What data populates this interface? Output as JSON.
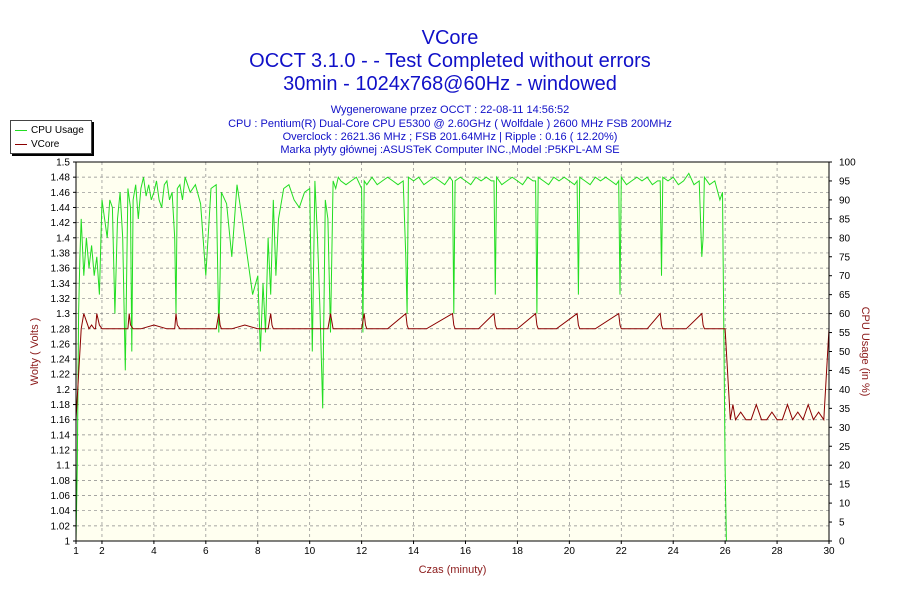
{
  "title": {
    "line1": "VCore",
    "line2": "OCCT 3.1.0 -  - Test Completed without errors",
    "line3": "30min - 1024x768@60Hz - windowed"
  },
  "info": [
    "Wygenerowane przez OCCT : 22-08-11 14:56:52",
    "CPU : Pentium(R) Dual-Core CPU E5300 @ 2.60GHz ( Wolfdale ) 2600 MHz FSB 200MHz",
    "Overclock : 2621.36 MHz ; FSB 201.64MHz | Ripple : 0.16 ( 12.20%)",
    "Marka płyty głównej :ASUSTeK Computer INC.,Model :P5KPL-AM SE"
  ],
  "legend": [
    {
      "name": "CPU Usage",
      "color": "#22dd22"
    },
    {
      "name": "VCore",
      "color": "#8b0000"
    }
  ],
  "colors": {
    "plot_bg": "#fffff0",
    "grid": "#888888",
    "title": "#1010c8",
    "axis_title": "#8b1a1a",
    "cpu": "#22dd22",
    "vcore": "#8b0000"
  },
  "chart_data": {
    "type": "line",
    "title": "VCore",
    "xlabel": "Czas (minuty)",
    "ylabel": "Wolty ( Volts )",
    "y2label": "CPU Usage (in %)",
    "xlim": [
      1,
      30
    ],
    "ylim": [
      1,
      1.5
    ],
    "y2lim": [
      0,
      100
    ],
    "grid": true,
    "legend_position": "top-left",
    "x_ticks": [
      1,
      2,
      4,
      6,
      8,
      10,
      12,
      14,
      16,
      18,
      20,
      22,
      24,
      26,
      28,
      30
    ],
    "y_ticks": [
      1,
      1.02,
      1.04,
      1.06,
      1.08,
      1.1,
      1.12,
      1.14,
      1.16,
      1.18,
      1.2,
      1.22,
      1.24,
      1.26,
      1.28,
      1.3,
      1.32,
      1.34,
      1.36,
      1.38,
      1.4,
      1.42,
      1.44,
      1.46,
      1.48,
      1.5
    ],
    "y2_ticks": [
      0,
      5,
      10,
      15,
      20,
      25,
      30,
      35,
      40,
      45,
      50,
      55,
      60,
      65,
      70,
      75,
      80,
      85,
      90,
      95,
      100
    ],
    "series": [
      {
        "name": "CPU Usage",
        "axis": "right",
        "x": [
          1.0,
          1.05,
          1.1,
          1.15,
          1.2,
          1.3,
          1.4,
          1.5,
          1.6,
          1.7,
          1.8,
          1.9,
          2.0,
          2.1,
          2.2,
          2.3,
          2.4,
          2.5,
          2.6,
          2.7,
          2.8,
          2.9,
          3.0,
          3.1,
          3.15,
          3.2,
          3.3,
          3.4,
          3.5,
          3.6,
          3.7,
          3.8,
          3.9,
          4.0,
          4.1,
          4.2,
          4.3,
          4.4,
          4.5,
          4.6,
          4.7,
          4.8,
          4.85,
          4.9,
          5.0,
          5.1,
          5.2,
          5.4,
          5.6,
          5.8,
          6.0,
          6.2,
          6.4,
          6.5,
          6.55,
          6.6,
          6.8,
          7.0,
          7.2,
          7.4,
          7.6,
          7.8,
          8.0,
          8.1,
          8.2,
          8.3,
          8.4,
          8.5,
          8.6,
          8.7,
          8.8,
          9.0,
          9.2,
          9.4,
          9.6,
          9.8,
          10.0,
          10.1,
          10.2,
          10.3,
          10.4,
          10.5,
          10.6,
          10.7,
          10.8,
          10.9,
          11.0,
          11.1,
          11.2,
          11.4,
          11.6,
          11.8,
          12.0,
          12.05,
          12.1,
          12.2,
          12.4,
          12.6,
          12.8,
          13.0,
          13.2,
          13.4,
          13.6,
          13.7,
          13.75,
          13.8,
          14.0,
          14.2,
          14.4,
          14.6,
          14.8,
          15.0,
          15.2,
          15.4,
          15.5,
          15.55,
          15.6,
          15.8,
          16.0,
          16.2,
          16.4,
          16.6,
          16.8,
          17.0,
          17.1,
          17.15,
          17.2,
          17.4,
          17.6,
          17.8,
          18.0,
          18.2,
          18.4,
          18.6,
          18.7,
          18.75,
          18.8,
          19.0,
          19.2,
          19.4,
          19.6,
          19.8,
          20.0,
          20.2,
          20.3,
          20.35,
          20.4,
          20.6,
          20.8,
          21.0,
          21.2,
          21.4,
          21.6,
          21.8,
          21.9,
          21.95,
          22.0,
          22.2,
          22.4,
          22.6,
          22.8,
          23.0,
          23.2,
          23.4,
          23.5,
          23.55,
          23.6,
          23.8,
          24.0,
          24.2,
          24.4,
          24.6,
          24.8,
          25.0,
          25.1,
          25.15,
          25.2,
          25.4,
          25.6,
          25.8,
          25.9,
          26.0,
          26.05
        ],
        "values": [
          0,
          20,
          60,
          75,
          85,
          70,
          80,
          72,
          78,
          70,
          75,
          65,
          90,
          85,
          80,
          90,
          88,
          60,
          85,
          92,
          80,
          45,
          93,
          88,
          50,
          90,
          94,
          85,
          93,
          96,
          91,
          94,
          90,
          92,
          95,
          90,
          88,
          94,
          95,
          90,
          92,
          80,
          60,
          93,
          94,
          90,
          96,
          92,
          94,
          89,
          70,
          93,
          94,
          55,
          70,
          92,
          89,
          75,
          94,
          85,
          75,
          65,
          70,
          50,
          68,
          55,
          80,
          65,
          90,
          70,
          85,
          93,
          94,
          90,
          88,
          92,
          93,
          50,
          95,
          80,
          60,
          35,
          90,
          85,
          55,
          95,
          93,
          96,
          95,
          94,
          95,
          96,
          93,
          55,
          95,
          94,
          96,
          94,
          95,
          96,
          95,
          94,
          95,
          75,
          60,
          96,
          95,
          96,
          94,
          95,
          96,
          95,
          94,
          96,
          95,
          60,
          95,
          96,
          95,
          94,
          96,
          95,
          96,
          95,
          95,
          65,
          96,
          94,
          95,
          96,
          95,
          94,
          96,
          95,
          95,
          60,
          96,
          95,
          94,
          96,
          95,
          96,
          95,
          94,
          95,
          65,
          96,
          95,
          94,
          96,
          95,
          96,
          95,
          94,
          95,
          65,
          96,
          94,
          95,
          96,
          95,
          96,
          94,
          95,
          95,
          70,
          96,
          95,
          96,
          94,
          95,
          97,
          94,
          95,
          75,
          80,
          96,
          94,
          95,
          90,
          92,
          20,
          0
        ]
      },
      {
        "name": "VCore",
        "axis": "left",
        "x": [
          1.0,
          1.1,
          1.2,
          1.3,
          1.4,
          1.5,
          1.6,
          1.7,
          1.75,
          1.8,
          1.9,
          2.0,
          2.5,
          3.0,
          3.05,
          3.1,
          3.2,
          3.5,
          4.0,
          4.5,
          4.8,
          4.85,
          4.9,
          5.0,
          5.5,
          6.0,
          6.4,
          6.5,
          6.55,
          6.6,
          7.0,
          7.5,
          8.0,
          8.4,
          8.5,
          8.55,
          8.6,
          9.0,
          10.0,
          10.5,
          10.7,
          10.8,
          10.85,
          10.9,
          11.0,
          11.5,
          12.0,
          12.1,
          12.15,
          12.2,
          13.0,
          13.7,
          13.75,
          13.8,
          14.5,
          15.5,
          15.55,
          15.6,
          16.5,
          17.1,
          17.15,
          17.2,
          18.0,
          18.7,
          18.75,
          18.8,
          19.5,
          20.3,
          20.35,
          20.4,
          21.0,
          21.9,
          21.95,
          22.0,
          23.0,
          23.5,
          23.55,
          23.6,
          24.5,
          25.1,
          25.15,
          25.2,
          25.8,
          26.0,
          26.1,
          26.2,
          26.3,
          26.4,
          26.6,
          26.8,
          27.0,
          27.2,
          27.4,
          27.6,
          27.8,
          28.0,
          28.2,
          28.4,
          28.6,
          28.8,
          29.0,
          29.2,
          29.4,
          29.6,
          29.8,
          30.0
        ],
        "values": [
          1.16,
          1.22,
          1.28,
          1.3,
          1.29,
          1.28,
          1.285,
          1.28,
          1.28,
          1.3,
          1.285,
          1.28,
          1.28,
          1.28,
          1.3,
          1.285,
          1.28,
          1.28,
          1.285,
          1.28,
          1.28,
          1.3,
          1.285,
          1.28,
          1.28,
          1.28,
          1.28,
          1.3,
          1.285,
          1.28,
          1.28,
          1.285,
          1.28,
          1.28,
          1.3,
          1.285,
          1.28,
          1.28,
          1.28,
          1.28,
          1.28,
          1.3,
          1.29,
          1.28,
          1.28,
          1.28,
          1.28,
          1.3,
          1.285,
          1.28,
          1.28,
          1.3,
          1.285,
          1.28,
          1.28,
          1.3,
          1.285,
          1.28,
          1.28,
          1.3,
          1.285,
          1.28,
          1.28,
          1.3,
          1.285,
          1.28,
          1.28,
          1.3,
          1.285,
          1.28,
          1.28,
          1.3,
          1.285,
          1.28,
          1.28,
          1.3,
          1.285,
          1.28,
          1.28,
          1.3,
          1.285,
          1.28,
          1.28,
          1.28,
          1.22,
          1.16,
          1.18,
          1.16,
          1.17,
          1.16,
          1.16,
          1.18,
          1.16,
          1.16,
          1.17,
          1.16,
          1.16,
          1.18,
          1.16,
          1.17,
          1.16,
          1.18,
          1.16,
          1.17,
          1.16,
          1.28
        ]
      }
    ]
  }
}
